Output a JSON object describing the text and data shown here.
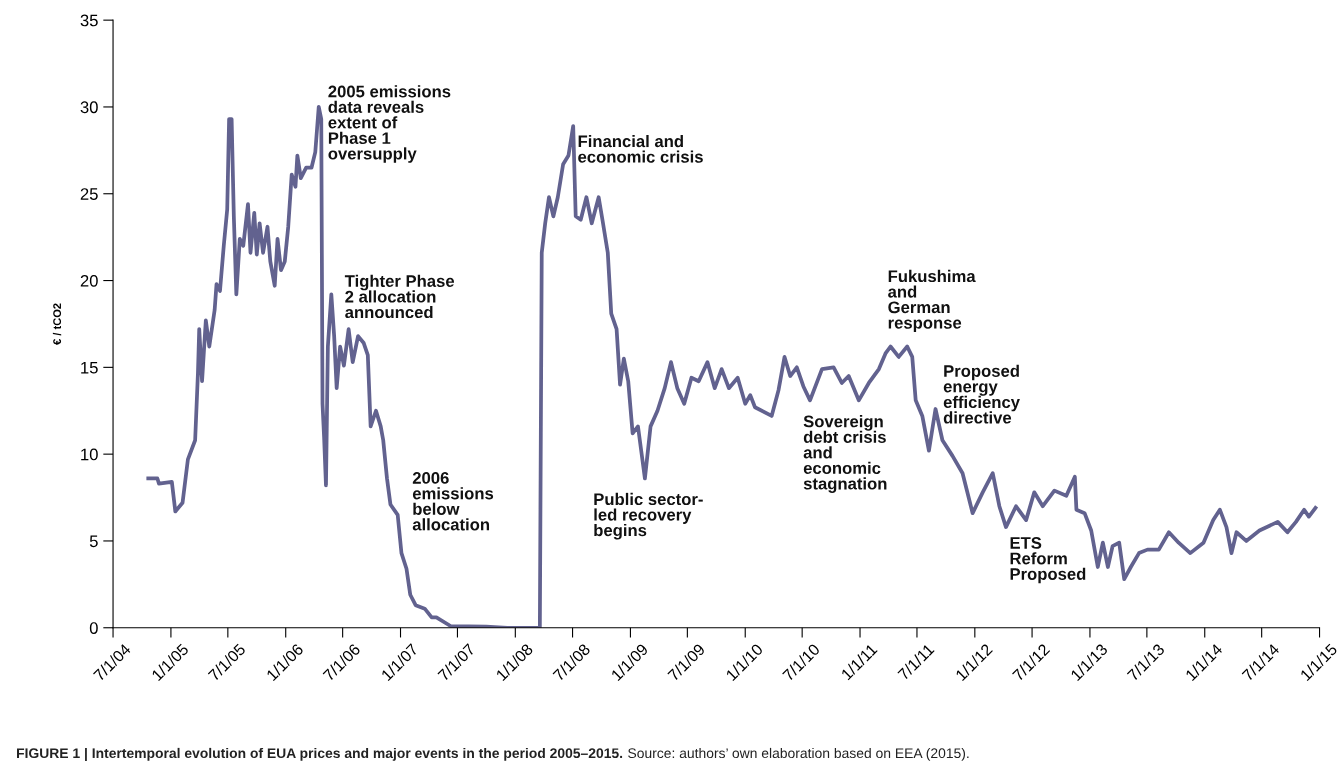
{
  "chart_data": {
    "type": "line",
    "ylabel": "€ / tCO2",
    "xlim": [
      "2004-07-01",
      "2015-01-01"
    ],
    "xticks": [
      {
        "value": "2004-07-01",
        "label": "7/1/04"
      },
      {
        "value": "2005-01-01",
        "label": "1/1/05"
      },
      {
        "value": "2005-07-01",
        "label": "7/1/05"
      },
      {
        "value": "2006-01-01",
        "label": "1/1/06"
      },
      {
        "value": "2006-07-01",
        "label": "7/1/06"
      },
      {
        "value": "2007-01-01",
        "label": "1/1/07"
      },
      {
        "value": "2007-07-01",
        "label": "7/1/07"
      },
      {
        "value": "2008-01-01",
        "label": "1/1/08"
      },
      {
        "value": "2008-07-01",
        "label": "7/1/08"
      },
      {
        "value": "2009-01-01",
        "label": "1/1/09"
      },
      {
        "value": "2009-07-01",
        "label": "7/1/09"
      },
      {
        "value": "2010-01-01",
        "label": "1/1/10"
      },
      {
        "value": "2010-07-01",
        "label": "7/1/10"
      },
      {
        "value": "2011-01-01",
        "label": "1/1/11"
      },
      {
        "value": "2011-07-01",
        "label": "7/1/11"
      },
      {
        "value": "2012-01-01",
        "label": "1/1/12"
      },
      {
        "value": "2012-07-01",
        "label": "7/1/12"
      },
      {
        "value": "2013-01-01",
        "label": "1/1/13"
      },
      {
        "value": "2013-07-01",
        "label": "7/1/13"
      },
      {
        "value": "2014-01-01",
        "label": "1/1/14"
      },
      {
        "value": "2014-07-01",
        "label": "7/1/14"
      },
      {
        "value": "2015-01-01",
        "label": "1/1/15"
      }
    ],
    "ylim": [
      0,
      35
    ],
    "yticks": [
      0,
      5,
      10,
      15,
      20,
      25,
      30,
      35
    ],
    "grid": false,
    "marker": "none",
    "line_style": "solid",
    "series": [
      {
        "color": "#62628f",
        "x": [
          "2004-10-21",
          "2004-11-19",
          "2004-11-24",
          "2005-01-04",
          "2005-01-15",
          "2005-02-07",
          "2005-02-24",
          "2005-03-19",
          "2005-03-28",
          "2005-04-01",
          "2005-04-10",
          "2005-04-22",
          "2005-05-03",
          "2005-05-20",
          "2005-05-26",
          "2005-06-06",
          "2005-06-18",
          "2005-06-29",
          "2005-07-05",
          "2005-07-13",
          "2005-07-20",
          "2005-07-28",
          "2005-08-08",
          "2005-08-19",
          "2005-09-03",
          "2005-09-11",
          "2005-09-23",
          "2005-10-01",
          "2005-10-10",
          "2005-10-21",
          "2005-11-04",
          "2005-11-13",
          "2005-11-27",
          "2005-12-06",
          "2005-12-17",
          "2005-12-29",
          "2006-01-09",
          "2006-01-20",
          "2006-02-01",
          "2006-02-07",
          "2006-02-18",
          "2006-03-07",
          "2006-03-24",
          "2006-04-05",
          "2006-04-16",
          "2006-04-24",
          "2006-04-28",
          "2006-05-03",
          "2006-05-09",
          "2006-05-15",
          "2006-05-26",
          "2006-06-04",
          "2006-06-12",
          "2006-06-23",
          "2006-07-05",
          "2006-07-20",
          "2006-08-02",
          "2006-08-19",
          "2006-09-06",
          "2006-09-19",
          "2006-09-28",
          "2006-10-15",
          "2006-10-30",
          "2006-11-07",
          "2006-11-19",
          "2006-11-30",
          "2006-12-23",
          "2007-01-04",
          "2007-01-20",
          "2007-02-01",
          "2007-02-18",
          "2007-03-19",
          "2007-04-10",
          "2007-04-25",
          "2007-06-09",
          "2007-09-30",
          "2007-12-07",
          "2008-03-19",
          "2008-03-25",
          "2008-04-05",
          "2008-04-17",
          "2008-05-01",
          "2008-05-15",
          "2008-06-01",
          "2008-06-18",
          "2008-07-03",
          "2008-07-11",
          "2008-07-27",
          "2008-08-14",
          "2008-08-31",
          "2008-09-22",
          "2008-10-04",
          "2008-10-21",
          "2008-11-01",
          "2008-11-18",
          "2008-11-29",
          "2008-12-11",
          "2008-12-25",
          "2009-01-08",
          "2009-01-25",
          "2009-02-16",
          "2009-03-06",
          "2009-03-28",
          "2009-04-20",
          "2009-05-10",
          "2009-05-30",
          "2009-06-21",
          "2009-07-14",
          "2009-08-06",
          "2009-09-03",
          "2009-09-26",
          "2009-10-18",
          "2009-11-10",
          "2009-12-08",
          "2010-01-01",
          "2010-01-17",
          "2010-02-01",
          "2010-03-26",
          "2010-04-17",
          "2010-05-06",
          "2010-05-24",
          "2010-06-14",
          "2010-07-05",
          "2010-07-26",
          "2010-09-02",
          "2010-10-09",
          "2010-11-04",
          "2010-11-26",
          "2010-12-28",
          "2011-01-29",
          "2011-03-02",
          "2011-03-23",
          "2011-04-08",
          "2011-05-04",
          "2011-05-31",
          "2011-06-16",
          "2011-06-27",
          "2011-07-18",
          "2011-08-08",
          "2011-08-29",
          "2011-09-20",
          "2011-10-22",
          "2011-11-23",
          "2011-12-25",
          "2012-01-26",
          "2012-02-27",
          "2012-03-19",
          "2012-04-09",
          "2012-05-11",
          "2012-06-12",
          "2012-07-08",
          "2012-08-04",
          "2012-09-10",
          "2012-10-18",
          "2012-11-14",
          "2012-11-19",
          "2012-12-15",
          "2013-01-05",
          "2013-01-26",
          "2013-02-11",
          "2013-02-27",
          "2013-03-14",
          "2013-04-04",
          "2013-04-20",
          "2013-05-11",
          "2013-06-06",
          "2013-07-03",
          "2013-08-08",
          "2013-09-09",
          "2013-10-10",
          "2013-11-16",
          "2013-12-28",
          "2014-01-28",
          "2014-02-18",
          "2014-03-11",
          "2014-03-27",
          "2014-04-12",
          "2014-05-13",
          "2014-06-24",
          "2014-08-21",
          "2014-09-21",
          "2014-10-18",
          "2014-11-13",
          "2014-11-28",
          "2014-12-19"
        ],
        "values": [
          8.6,
          8.6,
          8.3,
          8.4,
          6.7,
          7.2,
          9.7,
          10.8,
          14.7,
          17.2,
          14.2,
          17.7,
          16.2,
          18.3,
          19.8,
          19.4,
          22.0,
          24.1,
          29.3,
          29.3,
          23.7,
          19.2,
          22.4,
          22.0,
          24.4,
          21.6,
          23.9,
          21.5,
          23.3,
          21.6,
          23.1,
          21.1,
          19.7,
          22.4,
          20.6,
          21.1,
          23.1,
          26.1,
          25.4,
          27.2,
          25.9,
          26.5,
          26.5,
          27.4,
          30.0,
          29.3,
          12.9,
          11.0,
          8.2,
          16.2,
          19.2,
          16.8,
          13.8,
          16.2,
          15.1,
          17.2,
          15.3,
          16.8,
          16.4,
          15.7,
          11.6,
          12.5,
          11.6,
          10.8,
          8.6,
          7.1,
          6.5,
          4.3,
          3.4,
          1.9,
          1.3,
          1.1,
          0.6,
          0.6,
          0.1,
          0.07,
          0.0,
          0.0,
          21.6,
          23.3,
          24.8,
          23.7,
          24.8,
          26.7,
          27.2,
          28.9,
          23.7,
          23.5,
          24.8,
          23.3,
          24.8,
          23.5,
          21.6,
          18.1,
          17.2,
          14.0,
          15.5,
          14.2,
          11.2,
          11.6,
          8.6,
          11.6,
          12.5,
          13.8,
          15.3,
          13.8,
          12.9,
          14.4,
          14.2,
          15.3,
          13.8,
          14.9,
          13.8,
          14.4,
          12.9,
          13.4,
          12.7,
          12.2,
          13.7,
          15.6,
          14.5,
          15.0,
          13.9,
          13.1,
          14.9,
          15.0,
          14.1,
          14.5,
          13.1,
          14.1,
          14.9,
          15.8,
          16.2,
          15.6,
          16.2,
          15.6,
          13.1,
          12.2,
          10.2,
          12.6,
          10.8,
          9.9,
          8.9,
          6.6,
          7.8,
          8.9,
          7.0,
          5.8,
          7.0,
          6.2,
          7.8,
          7.0,
          7.9,
          7.6,
          8.7,
          6.8,
          6.6,
          5.6,
          3.5,
          4.9,
          3.5,
          4.7,
          4.9,
          2.8,
          3.5,
          4.3,
          4.5,
          4.5,
          5.5,
          4.9,
          4.3,
          4.9,
          6.2,
          6.8,
          5.8,
          4.3,
          5.5,
          5.0,
          5.6,
          6.1,
          5.5,
          6.1,
          6.8,
          6.4,
          6.9
        ]
      }
    ],
    "annotations": [
      "2005 emissions\ndata reveals\nextent of\nPhase 1\noversupply",
      "Tighter Phase\n2 allocation\nannounced",
      "2006\nemissions\nbelow\nallocation",
      "Financial and\neconomic crisis",
      "Public sector-\nled recovery\nbegins",
      "Sovereign\ndebt crisis\nand\neconomic\nstagnation",
      "Fukushima\nand\nGerman\nresponse",
      "Proposed\nenergy\nefficiency\ndirective",
      "ETS\nReform\nProposed",
      "FIGURE 1 | Intertemporal evolution of EUA prices and major events in the period 2005–2015.",
      "Source: authors’ own elaboration based on EEA (2015)."
    ]
  }
}
